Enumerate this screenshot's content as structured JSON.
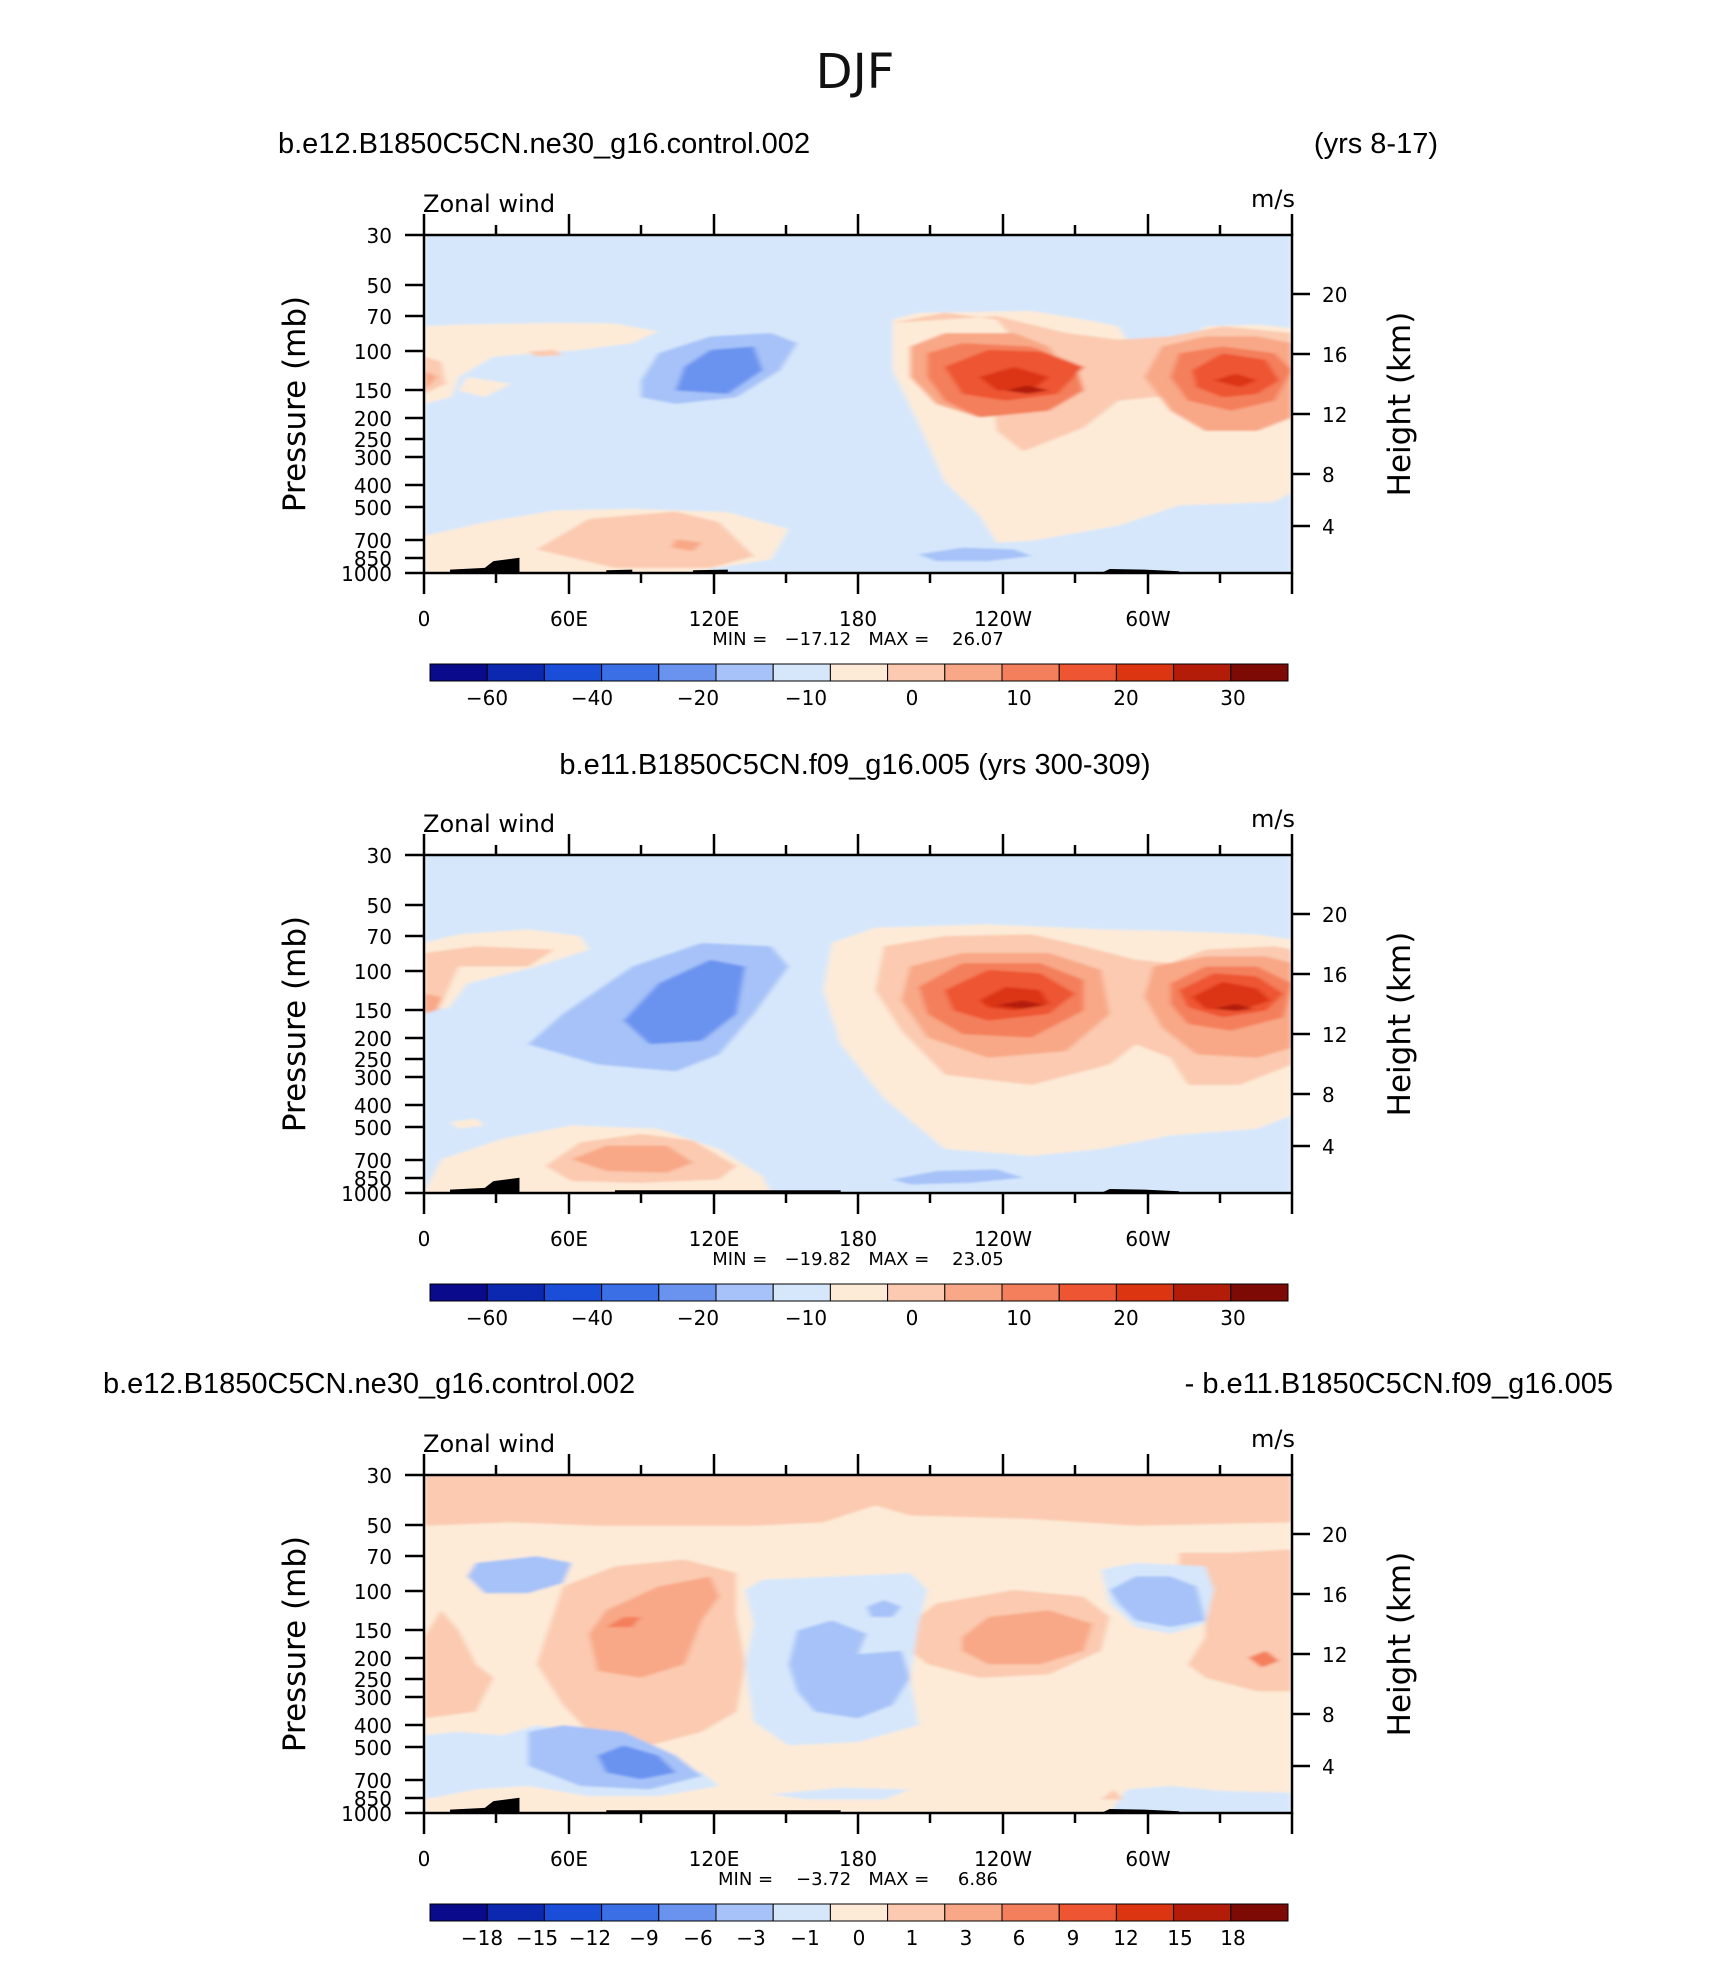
{
  "figure_title": "DJF",
  "colors": {
    "cb": [
      "#0a0a8c",
      "#0d28b0",
      "#1a4ed8",
      "#3a6fe6",
      "#6a93f0",
      "#a6c2f8",
      "#d6e7fb",
      "#fdebd8",
      "#fbcab0",
      "#f8a887",
      "#f47f5c",
      "#ee5532",
      "#dc3512",
      "#b31c08",
      "#7d0a05"
    ],
    "coast": "#000000",
    "frame": "#000000"
  },
  "chart_data": [
    {
      "type": "contour",
      "title_left": "b.e12.B1850C5CN.ne30_g16.control.002",
      "title_right": "(yrs 8-17)",
      "variable": "Zonal wind",
      "units": "m/s",
      "ylabel": "Pressure (mb)",
      "ylabel_right": "Height (km)",
      "xticks": [
        "0",
        "60E",
        "120E",
        "180",
        "120W",
        "60W"
      ],
      "yticks": [
        "30",
        "50",
        "70",
        "100",
        "150",
        "200",
        "250",
        "300",
        "400",
        "500",
        "700",
        "850",
        "1000"
      ],
      "yticks_right": [
        "20",
        "16",
        "12",
        "8",
        "4"
      ],
      "stats": "MIN =   −17.12   MAX =    26.07",
      "colorbar_labels": [
        "−60",
        "−40",
        "−20",
        "−10",
        "0",
        "10",
        "20",
        "30"
      ]
    },
    {
      "type": "contour",
      "title_center": "b.e11.B1850C5CN.f09_g16.005 (yrs 300-309)",
      "variable": "Zonal wind",
      "units": "m/s",
      "ylabel": "Pressure (mb)",
      "ylabel_right": "Height (km)",
      "xticks": [
        "0",
        "60E",
        "120E",
        "180",
        "120W",
        "60W"
      ],
      "yticks": [
        "30",
        "50",
        "70",
        "100",
        "150",
        "200",
        "250",
        "300",
        "400",
        "500",
        "700",
        "850",
        "1000"
      ],
      "yticks_right": [
        "20",
        "16",
        "12",
        "8",
        "4"
      ],
      "stats": "MIN =   −19.82   MAX =    23.05",
      "colorbar_labels": [
        "−60",
        "−40",
        "−20",
        "−10",
        "0",
        "10",
        "20",
        "30"
      ]
    },
    {
      "type": "contour",
      "title_left": "b.e12.B1850C5CN.ne30_g16.control.002",
      "title_right": "- b.e11.B1850C5CN.f09_g16.005",
      "variable": "Zonal wind",
      "units": "m/s",
      "ylabel": "Pressure (mb)",
      "ylabel_right": "Height (km)",
      "xticks": [
        "0",
        "60E",
        "120E",
        "180",
        "120W",
        "60W"
      ],
      "yticks": [
        "30",
        "50",
        "70",
        "100",
        "150",
        "200",
        "250",
        "300",
        "400",
        "500",
        "700",
        "850",
        "1000"
      ],
      "yticks_right": [
        "20",
        "16",
        "12",
        "8",
        "4"
      ],
      "stats": "MIN =    −3.72   MAX =     6.86",
      "colorbar_labels": [
        "−18",
        "−15",
        "−12",
        "−9",
        "−6",
        "−3",
        "−1",
        "0",
        "1",
        "3",
        "6",
        "9",
        "12",
        "15",
        "18"
      ]
    }
  ]
}
